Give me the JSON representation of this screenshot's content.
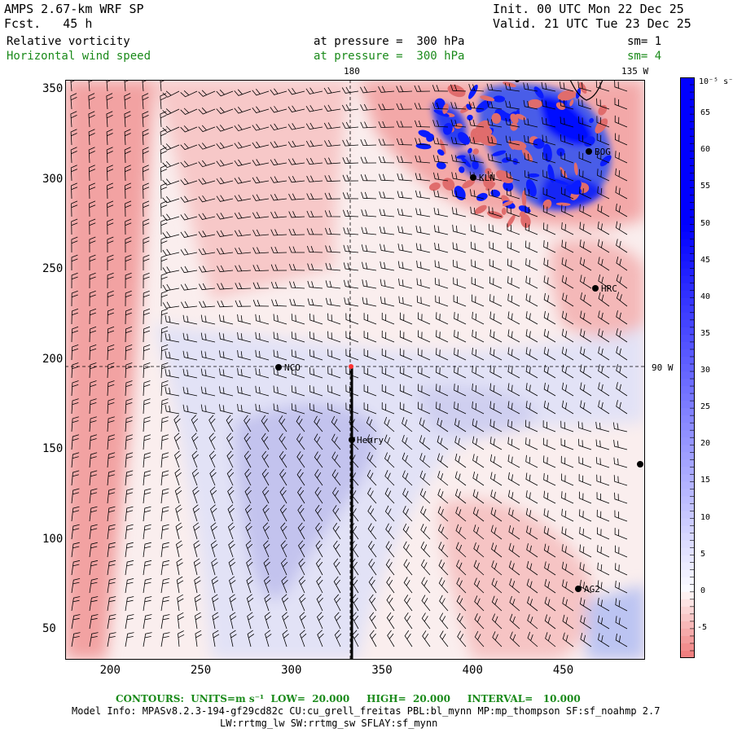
{
  "header": {
    "model_title": "AMPS 2.67-km WRF SP",
    "forecast": "Fcst.   45 h",
    "init": "Init. 00 UTC Mon 22 Dec 25",
    "valid": "Valid. 21 UTC Tue 23 Dec 25"
  },
  "fields": [
    {
      "name": "Relative vorticity",
      "pressure_label": "at pressure =  300 hPa",
      "smoothing": "sm= 1",
      "color": "#000000"
    },
    {
      "name": "Horizontal wind speed",
      "pressure_label": "at pressure =  300 hPa",
      "smoothing": "sm= 4",
      "color": "#1a8a1a"
    }
  ],
  "map": {
    "longitude_labels": [
      "180",
      "135 W",
      "90 W"
    ],
    "stations": [
      {
        "id": "KLN"
      },
      {
        "id": "BOG"
      },
      {
        "id": "HRC"
      },
      {
        "id": "NCO"
      },
      {
        "id": "Henry"
      },
      {
        "id": "AG2"
      },
      {
        "id": ""
      }
    ],
    "axes": {
      "x_ticks": [
        200,
        250,
        300,
        350,
        400,
        450
      ],
      "y_ticks": [
        50,
        100,
        150,
        200,
        250,
        300,
        350
      ],
      "xlim": [
        175,
        495
      ],
      "ylim": [
        33,
        355
      ]
    }
  },
  "colorbar": {
    "units": "10⁻⁵ s⁻¹",
    "labels": [
      65,
      60,
      55,
      50,
      45,
      40,
      35,
      30,
      25,
      20,
      15,
      10,
      5,
      0,
      -5
    ],
    "range": [
      -9,
      70
    ],
    "positive_color": "#0000ff",
    "negative_color": "#f08080"
  },
  "footer": {
    "contours": "CONTOURS:  UNITS=m s⁻¹  LOW=  20.000     HIGH=  20.000     INTERVAL=   10.000",
    "model_info": "Model Info: MPASv8.2.3-194-gf29cd82c CU:cu_grell_freitas PBL:bl_mynn MP:mp_thompson SF:sf_noahmp 2.7",
    "physics": "LW:rrtmg_lw SW:rrtmg_sw SFLAY:sf_mynn"
  }
}
